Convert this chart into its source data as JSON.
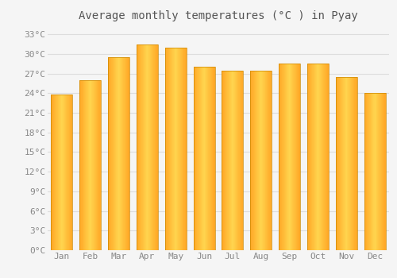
{
  "title": "Average monthly temperatures (°C ) in Pyay",
  "months": [
    "Jan",
    "Feb",
    "Mar",
    "Apr",
    "May",
    "Jun",
    "Jul",
    "Aug",
    "Sep",
    "Oct",
    "Nov",
    "Dec"
  ],
  "values": [
    23.8,
    26.0,
    29.5,
    31.5,
    31.0,
    28.0,
    27.5,
    27.5,
    28.5,
    28.5,
    26.5,
    24.0
  ],
  "ylim": [
    0,
    34
  ],
  "yticks": [
    0,
    3,
    6,
    9,
    12,
    15,
    18,
    21,
    24,
    27,
    30,
    33
  ],
  "ytick_labels": [
    "0°C",
    "3°C",
    "6°C",
    "9°C",
    "12°C",
    "15°C",
    "18°C",
    "21°C",
    "24°C",
    "27°C",
    "30°C",
    "33°C"
  ],
  "bar_color_center": "#FFD54F",
  "bar_color_edge": "#FFA726",
  "bar_edge_color": "#CC8800",
  "background_color": "#F5F5F5",
  "grid_color": "#DDDDDD",
  "title_fontsize": 10,
  "tick_fontsize": 8,
  "font_color": "#888888",
  "title_color": "#555555"
}
